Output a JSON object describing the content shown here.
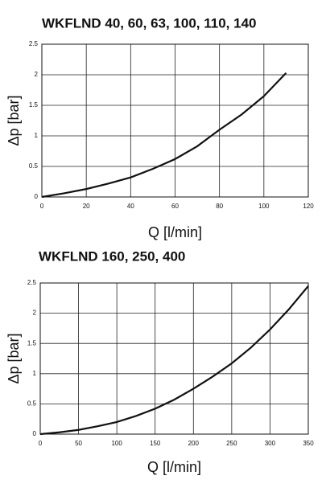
{
  "chart_data": [
    {
      "type": "line",
      "title": "WKFLND 40, 60, 63, 100, 110, 140",
      "x_label": "Q [l/min]",
      "y_label": "Δp [bar]",
      "x": [
        0,
        10,
        20,
        30,
        40,
        50,
        60,
        70,
        80,
        90,
        100,
        110
      ],
      "series": [
        {
          "name": "WKFLND 40, 60, 63, 100, 110, 140",
          "color": "#111111",
          "values": [
            0,
            0.06,
            0.13,
            0.22,
            0.32,
            0.46,
            0.62,
            0.83,
            1.1,
            1.35,
            1.65,
            2.03
          ]
        }
      ],
      "xlim": [
        0,
        120
      ],
      "xticks": [
        0,
        20,
        40,
        60,
        80,
        100,
        120
      ],
      "ylim": [
        0,
        2.5
      ],
      "yticks": [
        0,
        0.5,
        1,
        1.5,
        2,
        2.5
      ],
      "grid": true
    },
    {
      "type": "line",
      "title": "WKFLND 160, 250, 400",
      "x_label": "Q [l/min]",
      "y_label": "Δp [bar]",
      "x": [
        0,
        25,
        50,
        75,
        100,
        125,
        150,
        175,
        200,
        225,
        250,
        275,
        300,
        325,
        350
      ],
      "series": [
        {
          "name": "WKFLND 160, 250, 400",
          "color": "#111111",
          "values": [
            0,
            0.03,
            0.07,
            0.13,
            0.2,
            0.3,
            0.42,
            0.57,
            0.75,
            0.95,
            1.17,
            1.43,
            1.73,
            2.07,
            2.45
          ]
        }
      ],
      "xlim": [
        0,
        350
      ],
      "xticks": [
        0,
        50,
        100,
        150,
        200,
        250,
        300,
        350
      ],
      "ylim": [
        0,
        2.5
      ],
      "yticks": [
        0,
        0.5,
        1,
        1.5,
        2,
        2.5
      ],
      "grid": true
    }
  ]
}
